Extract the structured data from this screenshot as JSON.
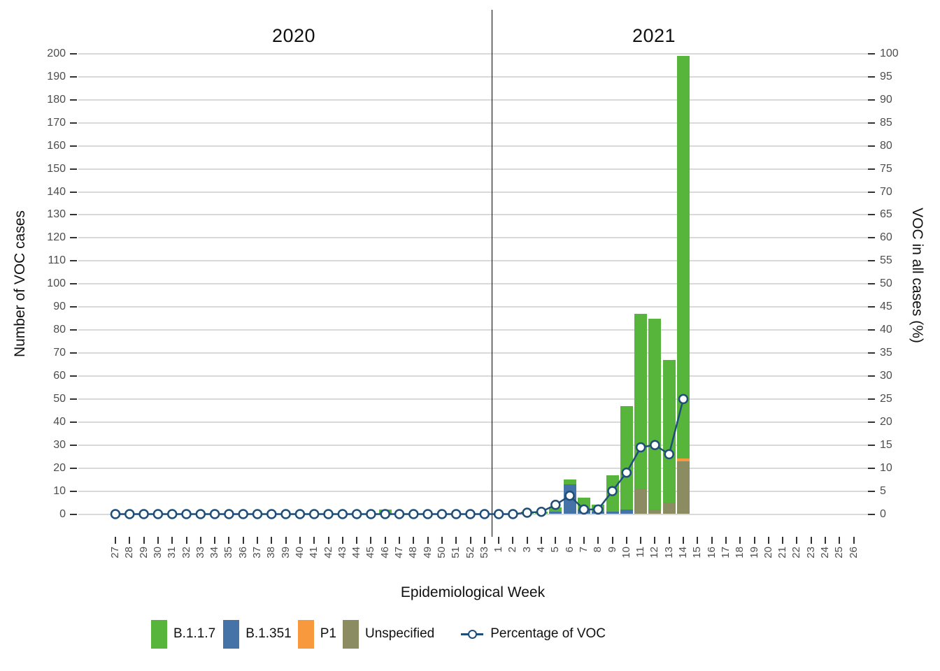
{
  "chart_data": {
    "type": "bar",
    "subtype": "stacked-bar-with-percentage-line",
    "x_axis": {
      "title": "Epidemiological Week",
      "year_labels": [
        "2020",
        "2021"
      ],
      "weeks_2020": [
        27,
        28,
        29,
        30,
        31,
        32,
        33,
        34,
        35,
        36,
        37,
        38,
        39,
        40,
        41,
        42,
        43,
        44,
        45,
        46,
        47,
        48,
        49,
        50,
        51,
        52,
        53
      ],
      "weeks_2021": [
        1,
        2,
        3,
        4,
        5,
        6,
        7,
        8,
        9,
        10,
        11,
        12,
        13,
        14,
        15,
        16,
        17,
        18,
        19,
        20,
        21,
        22,
        23,
        24,
        25,
        26
      ]
    },
    "y_axis_left": {
      "title": "Number of VOC cases",
      "min": 0,
      "max": 200,
      "step": 10
    },
    "y_axis_right": {
      "title": "VOC in all cases (%)",
      "min": 0,
      "max": 100,
      "step": 5
    },
    "grid": "horizontal major lines only",
    "legend_position": "bottom",
    "colors": {
      "B117": "#58b53c",
      "B1351": "#4573a7",
      "P1": "#f9993d",
      "Unspecified": "#8c8c62",
      "line": "#1f4e79",
      "grid": "#d9d9d9",
      "tick_mark": "#333333",
      "tick_text": "#4d4d4d",
      "divider": "#000000"
    },
    "legend": [
      {
        "key": "B117",
        "label": "B.1.1.7"
      },
      {
        "key": "B1351",
        "label": "B.1.351"
      },
      {
        "key": "P1",
        "label": "P1"
      },
      {
        "key": "Unspecified",
        "label": "Unspecified"
      },
      {
        "key": "line",
        "label": "Percentage of VOC"
      }
    ],
    "bars": [
      {
        "year": 2020,
        "week": 46,
        "B117": 2,
        "B1351": 0,
        "P1": 0,
        "Unspecified": 0
      },
      {
        "year": 2021,
        "week": 3,
        "B117": 1,
        "B1351": 0,
        "P1": 0,
        "Unspecified": 0
      },
      {
        "year": 2021,
        "week": 4,
        "B117": 1,
        "B1351": 0,
        "P1": 0,
        "Unspecified": 0
      },
      {
        "year": 2021,
        "week": 5,
        "B117": 2,
        "B1351": 1,
        "P1": 0,
        "Unspecified": 0
      },
      {
        "year": 2021,
        "week": 6,
        "B117": 2,
        "B1351": 13,
        "P1": 0,
        "Unspecified": 0
      },
      {
        "year": 2021,
        "week": 7,
        "B117": 5,
        "B1351": 2,
        "P1": 0,
        "Unspecified": 0
      },
      {
        "year": 2021,
        "week": 8,
        "B117": 3,
        "B1351": 1,
        "P1": 0,
        "Unspecified": 0
      },
      {
        "year": 2021,
        "week": 9,
        "B117": 16,
        "B1351": 1,
        "P1": 0,
        "Unspecified": 0
      },
      {
        "year": 2021,
        "week": 10,
        "B117": 45,
        "B1351": 2,
        "P1": 0,
        "Unspecified": 0
      },
      {
        "year": 2021,
        "week": 11,
        "B117": 76,
        "B1351": 0,
        "P1": 0,
        "Unspecified": 11
      },
      {
        "year": 2021,
        "week": 12,
        "B117": 83,
        "B1351": 0,
        "P1": 0,
        "Unspecified": 2
      },
      {
        "year": 2021,
        "week": 13,
        "B117": 62,
        "B1351": 0,
        "P1": 0,
        "Unspecified": 5
      },
      {
        "year": 2021,
        "week": 14,
        "B117": 175,
        "B1351": 0,
        "P1": 1,
        "Unspecified": 23
      }
    ],
    "stack_order_bottom_to_top": [
      "Unspecified",
      "P1",
      "B1351",
      "B117"
    ],
    "percentage_of_voc": {
      "2020": [
        0,
        0,
        0,
        0,
        0,
        0,
        0,
        0,
        0,
        0,
        0,
        0,
        0,
        0,
        0,
        0,
        0,
        0,
        0,
        0,
        0,
        0,
        0,
        0,
        0,
        0,
        0
      ],
      "2021": [
        0,
        0,
        0.3,
        0.5,
        2,
        4,
        1,
        1,
        5,
        9,
        14.5,
        15,
        13,
        25
      ]
    }
  }
}
